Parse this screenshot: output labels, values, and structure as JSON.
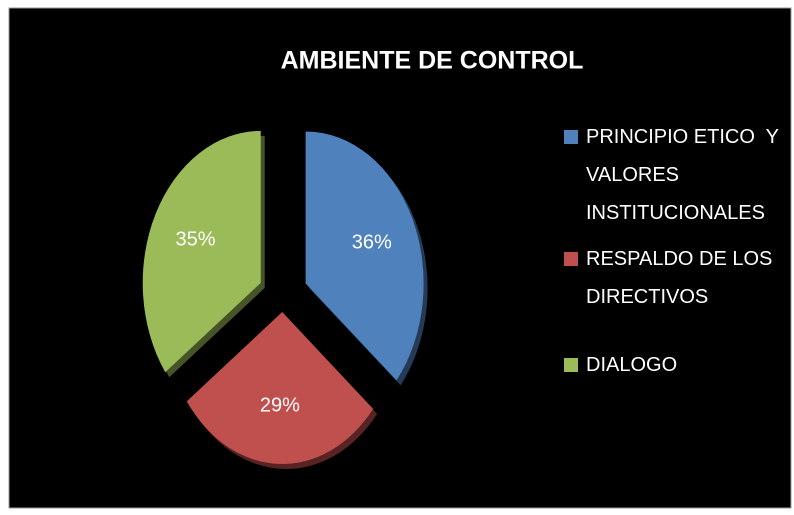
{
  "chart_data": {
    "type": "pie",
    "title": "AMBIENTE DE CONTROL",
    "categories": [
      "PRINCIPIO ETICO  Y VALORES INSTITUCIONALES",
      "RESPALDO DE LOS DIRECTIVOS",
      "DIALOGO"
    ],
    "values": [
      36,
      29,
      35
    ],
    "value_labels": [
      "36%",
      "29%",
      "35%"
    ],
    "colors": [
      "#4f81bd",
      "#c0504d",
      "#9bbb59"
    ],
    "legend": "right"
  }
}
